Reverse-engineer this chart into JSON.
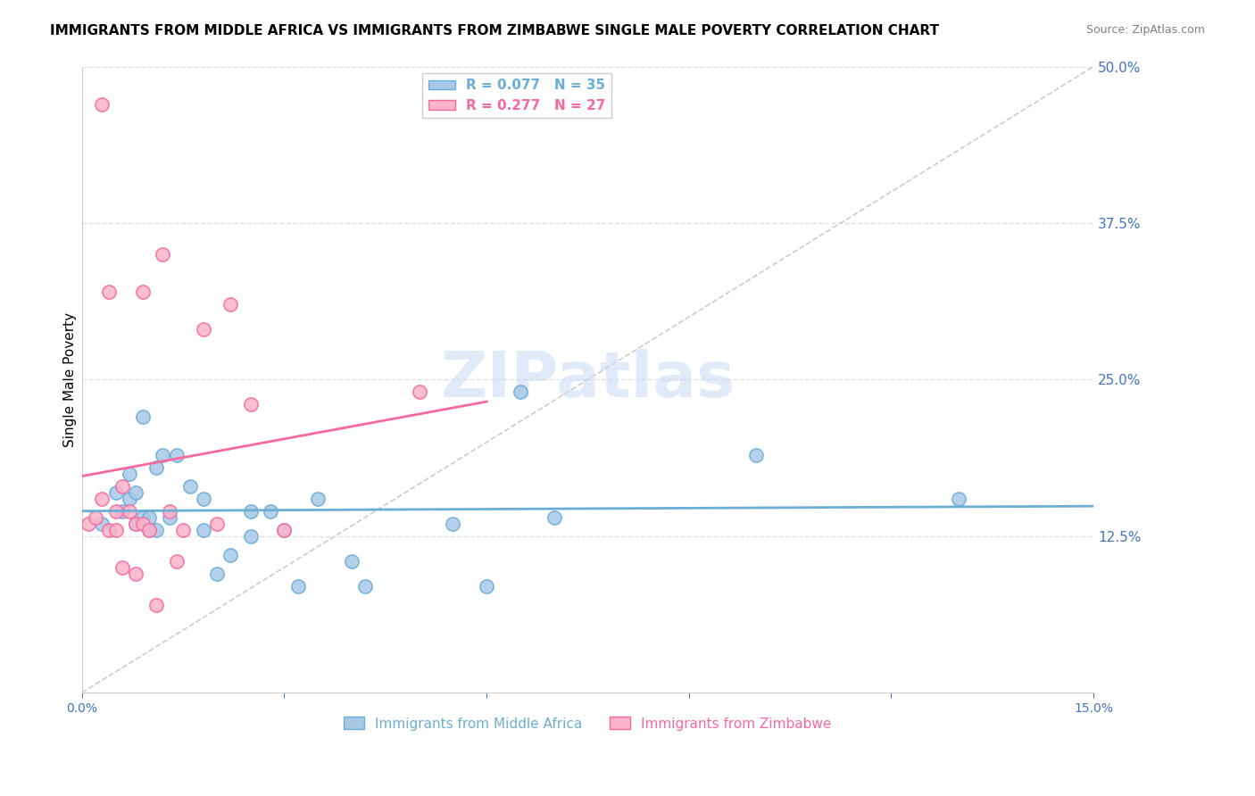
{
  "title": "IMMIGRANTS FROM MIDDLE AFRICA VS IMMIGRANTS FROM ZIMBABWE SINGLE MALE POVERTY CORRELATION CHART",
  "source": "Source: ZipAtlas.com",
  "ylabel": "Single Male Poverty",
  "xlim": [
    0.0,
    0.15
  ],
  "ylim": [
    0.0,
    0.5
  ],
  "legend_label_blue": "Immigrants from Middle Africa",
  "legend_label_pink": "Immigrants from Zimbabwe",
  "series_blue": {
    "R": 0.077,
    "N": 35,
    "color": "#6baed6",
    "scatter_color": "#a8c8e8",
    "x": [
      0.003,
      0.005,
      0.006,
      0.007,
      0.007,
      0.008,
      0.008,
      0.009,
      0.009,
      0.01,
      0.01,
      0.011,
      0.011,
      0.012,
      0.013,
      0.014,
      0.016,
      0.018,
      0.018,
      0.02,
      0.022,
      0.025,
      0.025,
      0.028,
      0.03,
      0.032,
      0.035,
      0.04,
      0.042,
      0.055,
      0.06,
      0.065,
      0.07,
      0.1,
      0.13
    ],
    "y": [
      0.135,
      0.16,
      0.145,
      0.155,
      0.175,
      0.135,
      0.16,
      0.14,
      0.22,
      0.13,
      0.14,
      0.13,
      0.18,
      0.19,
      0.14,
      0.19,
      0.165,
      0.13,
      0.155,
      0.095,
      0.11,
      0.145,
      0.125,
      0.145,
      0.13,
      0.085,
      0.155,
      0.105,
      0.085,
      0.135,
      0.085,
      0.24,
      0.14,
      0.19,
      0.155
    ]
  },
  "series_pink": {
    "R": 0.277,
    "N": 27,
    "color": "#f768a1",
    "scatter_color": "#fbb4c9",
    "x": [
      0.001,
      0.002,
      0.003,
      0.003,
      0.004,
      0.004,
      0.005,
      0.005,
      0.006,
      0.006,
      0.007,
      0.008,
      0.008,
      0.009,
      0.009,
      0.01,
      0.011,
      0.012,
      0.013,
      0.014,
      0.015,
      0.018,
      0.02,
      0.022,
      0.025,
      0.03,
      0.05
    ],
    "y": [
      0.135,
      0.14,
      0.47,
      0.155,
      0.32,
      0.13,
      0.145,
      0.13,
      0.165,
      0.1,
      0.145,
      0.135,
      0.095,
      0.135,
      0.32,
      0.13,
      0.07,
      0.35,
      0.145,
      0.105,
      0.13,
      0.29,
      0.135,
      0.31,
      0.23,
      0.13,
      0.24
    ]
  },
  "diagonal_color": "#cccccc",
  "diagonal_style": "--",
  "grid_color": "#e0e0e0",
  "grid_style": "--",
  "background_color": "#ffffff",
  "axis_label_color": "#4472c4",
  "y_ticks": [
    0.125,
    0.25,
    0.375,
    0.5
  ],
  "y_tick_labels": [
    "12.5%",
    "25.0%",
    "37.5%",
    "50.0%"
  ],
  "legend_top_labels": [
    "R = 0.077   N = 35",
    "R = 0.277   N = 27"
  ]
}
